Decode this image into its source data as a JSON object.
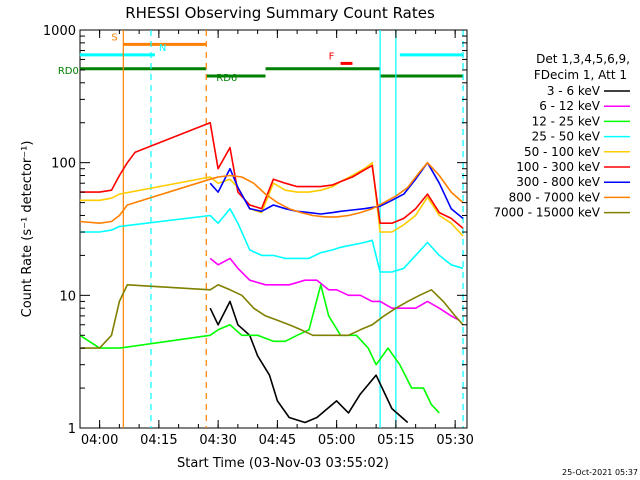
{
  "chart_data": {
    "type": "line",
    "title": "RHESSI Observing Summary Count Rates",
    "xlabel": "Start Time (03-Nov-03 03:55:02)",
    "ylabel": "Count Rate (s⁻¹ detector⁻¹)",
    "y_scale": "log",
    "ylim": [
      1,
      1000
    ],
    "xlim": [
      "03:55:02",
      "05:33:00"
    ],
    "x_ticks": [
      "04:00",
      "04:15",
      "04:30",
      "04:45",
      "05:00",
      "05:15",
      "05:30"
    ],
    "y_ticks": [
      "1",
      "10",
      "100",
      "1000"
    ],
    "footer_timestamp": "25-Oct-2021 05:37",
    "legend": {
      "header": [
        "Det 1,3,4,5,6,9,",
        "FDecim 1, Att 1"
      ],
      "placement": "right"
    },
    "flags": [
      {
        "label": "S",
        "color": "#ff8000",
        "segments": [
          [
            "04:06",
            "04:27"
          ]
        ],
        "level": 780
      },
      {
        "label": "N",
        "color": "#00ffff",
        "segments": [
          [
            "03:55",
            "04:14"
          ],
          [
            "05:16",
            "05:32"
          ]
        ],
        "level": 650
      },
      {
        "label": "F",
        "color": "#ff0000",
        "segments": [
          [
            "05:01",
            "05:04"
          ]
        ],
        "level": 560
      },
      {
        "label": "RD0",
        "color": "#008000",
        "segments": [
          [
            "03:55",
            "04:27"
          ],
          [
            "04:42",
            "05:11"
          ]
        ],
        "level": 510
      },
      {
        "label": "RD6",
        "color": "#008000",
        "segments": [
          [
            "04:27",
            "04:42"
          ],
          [
            "05:11",
            "05:32"
          ]
        ],
        "level": 450
      }
    ],
    "vlines": [
      {
        "time": "04:06",
        "color": "#ff8000",
        "style": "solid"
      },
      {
        "time": "04:27",
        "color": "#ff8000",
        "style": "dashed"
      },
      {
        "time": "04:13",
        "color": "#00ffff",
        "style": "dashed"
      },
      {
        "time": "05:11",
        "color": "#00ffff",
        "style": "solid"
      },
      {
        "time": "05:15",
        "color": "#00ffff",
        "style": "solid"
      },
      {
        "time": "05:32",
        "color": "#00ffff",
        "style": "dashed"
      }
    ],
    "series": [
      {
        "name": "3 - 6 keV",
        "color": "#000000",
        "points": [
          [
            "04:28",
            8
          ],
          [
            "04:30",
            6
          ],
          [
            "04:33",
            9
          ],
          [
            "04:35",
            6
          ],
          [
            "04:38",
            5
          ],
          [
            "04:40",
            3.5
          ],
          [
            "04:43",
            2.5
          ],
          [
            "04:45",
            1.6
          ],
          [
            "04:48",
            1.2
          ],
          [
            "04:52",
            1.1
          ],
          [
            "04:55",
            1.2
          ],
          [
            "05:00",
            1.6
          ],
          [
            "05:03",
            1.3
          ],
          [
            "05:06",
            1.8
          ],
          [
            "05:10",
            2.5
          ],
          [
            "05:14",
            1.4
          ],
          [
            "05:18",
            1.1
          ]
        ]
      },
      {
        "name": "6 - 12 keV",
        "color": "#ff00ff",
        "points": [
          [
            "04:28",
            19
          ],
          [
            "04:30",
            17
          ],
          [
            "04:33",
            19
          ],
          [
            "04:35",
            16
          ],
          [
            "04:38",
            13
          ],
          [
            "04:42",
            12
          ],
          [
            "04:45",
            12
          ],
          [
            "04:48",
            12
          ],
          [
            "04:52",
            13
          ],
          [
            "04:55",
            13
          ],
          [
            "04:58",
            11
          ],
          [
            "05:00",
            11
          ],
          [
            "05:03",
            10
          ],
          [
            "05:06",
            10
          ],
          [
            "05:09",
            9
          ],
          [
            "05:11",
            9
          ],
          [
            "05:14",
            8
          ],
          [
            "05:17",
            8
          ],
          [
            "05:20",
            8
          ],
          [
            "05:23",
            9
          ],
          [
            "05:26",
            8
          ],
          [
            "05:29",
            7
          ],
          [
            "05:31",
            6.5
          ]
        ]
      },
      {
        "name": "12 - 25 keV",
        "color": "#00ff00",
        "points": [
          [
            "03:55",
            5
          ],
          [
            "04:00",
            4
          ],
          [
            "04:03",
            4
          ],
          [
            "04:05",
            4
          ],
          [
            "04:28",
            5
          ],
          [
            "04:30",
            5.5
          ],
          [
            "04:33",
            6
          ],
          [
            "04:36",
            5
          ],
          [
            "04:40",
            5
          ],
          [
            "04:44",
            4.5
          ],
          [
            "04:47",
            4.5
          ],
          [
            "04:50",
            5
          ],
          [
            "04:53",
            5.5
          ],
          [
            "04:56",
            12
          ],
          [
            "04:58",
            7
          ],
          [
            "05:01",
            5
          ],
          [
            "05:05",
            5
          ],
          [
            "05:08",
            4
          ],
          [
            "05:10",
            3
          ],
          [
            "05:13",
            4
          ],
          [
            "05:16",
            3
          ],
          [
            "05:19",
            2
          ],
          [
            "05:22",
            2
          ],
          [
            "05:24",
            1.5
          ],
          [
            "05:26",
            1.3
          ]
        ]
      },
      {
        "name": "25 - 50 keV",
        "color": "#00ffff",
        "points": [
          [
            "03:55",
            30
          ],
          [
            "04:00",
            30
          ],
          [
            "04:03",
            31
          ],
          [
            "04:05",
            33
          ],
          [
            "04:28",
            40
          ],
          [
            "04:30",
            35
          ],
          [
            "04:33",
            45
          ],
          [
            "04:35",
            35
          ],
          [
            "04:38",
            22
          ],
          [
            "04:41",
            20
          ],
          [
            "04:44",
            20
          ],
          [
            "04:47",
            19
          ],
          [
            "04:50",
            19
          ],
          [
            "04:53",
            19
          ],
          [
            "04:56",
            21
          ],
          [
            "04:59",
            22
          ],
          [
            "05:01",
            23
          ],
          [
            "05:04",
            24
          ],
          [
            "05:07",
            25
          ],
          [
            "05:09",
            26
          ],
          [
            "05:11",
            15
          ],
          [
            "05:14",
            15
          ],
          [
            "05:17",
            16
          ],
          [
            "05:20",
            20
          ],
          [
            "05:23",
            25
          ],
          [
            "05:26",
            20
          ],
          [
            "05:29",
            17
          ],
          [
            "05:32",
            16
          ]
        ]
      },
      {
        "name": "50 - 100 keV",
        "color": "#ffcc00",
        "points": [
          [
            "03:55",
            52
          ],
          [
            "04:00",
            52
          ],
          [
            "04:03",
            54
          ],
          [
            "04:05",
            58
          ],
          [
            "04:28",
            78
          ],
          [
            "04:30",
            70
          ],
          [
            "04:33",
            75
          ],
          [
            "04:35",
            65
          ],
          [
            "04:38",
            45
          ],
          [
            "04:41",
            42
          ],
          [
            "04:44",
            70
          ],
          [
            "04:47",
            62
          ],
          [
            "04:50",
            60
          ],
          [
            "04:53",
            60
          ],
          [
            "04:56",
            62
          ],
          [
            "04:59",
            66
          ],
          [
            "05:01",
            72
          ],
          [
            "05:04",
            80
          ],
          [
            "05:07",
            90
          ],
          [
            "05:09",
            100
          ],
          [
            "05:11",
            30
          ],
          [
            "05:14",
            30
          ],
          [
            "05:17",
            34
          ],
          [
            "05:20",
            40
          ],
          [
            "05:23",
            55
          ],
          [
            "05:26",
            40
          ],
          [
            "05:29",
            35
          ],
          [
            "05:32",
            28
          ]
        ]
      },
      {
        "name": "100 - 300 keV",
        "color": "#ff0000",
        "points": [
          [
            "03:55",
            60
          ],
          [
            "04:00",
            60
          ],
          [
            "04:03",
            62
          ],
          [
            "04:05",
            80
          ],
          [
            "04:07",
            100
          ],
          [
            "04:09",
            120
          ],
          [
            "04:28",
            200
          ],
          [
            "04:30",
            90
          ],
          [
            "04:33",
            130
          ],
          [
            "04:35",
            60
          ],
          [
            "04:38",
            48
          ],
          [
            "04:41",
            45
          ],
          [
            "04:44",
            75
          ],
          [
            "04:47",
            70
          ],
          [
            "04:50",
            66
          ],
          [
            "04:53",
            66
          ],
          [
            "04:56",
            66
          ],
          [
            "04:59",
            68
          ],
          [
            "05:01",
            72
          ],
          [
            "05:04",
            78
          ],
          [
            "05:07",
            88
          ],
          [
            "05:09",
            95
          ],
          [
            "05:11",
            35
          ],
          [
            "05:14",
            35
          ],
          [
            "05:17",
            38
          ],
          [
            "05:20",
            45
          ],
          [
            "05:23",
            58
          ],
          [
            "05:26",
            42
          ],
          [
            "05:29",
            38
          ],
          [
            "05:32",
            32
          ]
        ]
      },
      {
        "name": "300 - 800 keV",
        "color": "#0000ff",
        "points": [
          [
            "04:28",
            70
          ],
          [
            "04:30",
            60
          ],
          [
            "04:33",
            90
          ],
          [
            "04:35",
            65
          ],
          [
            "04:38",
            45
          ],
          [
            "04:41",
            43
          ],
          [
            "04:44",
            48
          ],
          [
            "04:47",
            45
          ],
          [
            "04:50",
            43
          ],
          [
            "04:53",
            42
          ],
          [
            "04:56",
            41
          ],
          [
            "04:59",
            42
          ],
          [
            "05:01",
            43
          ],
          [
            "05:04",
            44
          ],
          [
            "05:07",
            45
          ],
          [
            "05:09",
            46
          ],
          [
            "05:11",
            47
          ],
          [
            "05:14",
            52
          ],
          [
            "05:17",
            58
          ],
          [
            "05:20",
            75
          ],
          [
            "05:23",
            100
          ],
          [
            "05:26",
            70
          ],
          [
            "05:29",
            45
          ],
          [
            "05:32",
            38
          ]
        ]
      },
      {
        "name": "800 - 7000 keV",
        "color": "#ff8000",
        "points": [
          [
            "03:55",
            36
          ],
          [
            "04:00",
            35
          ],
          [
            "04:03",
            36
          ],
          [
            "04:05",
            40
          ],
          [
            "04:07",
            48
          ],
          [
            "04:28",
            75
          ],
          [
            "04:30",
            78
          ],
          [
            "04:33",
            80
          ],
          [
            "04:36",
            78
          ],
          [
            "04:39",
            70
          ],
          [
            "04:42",
            58
          ],
          [
            "04:45",
            50
          ],
          [
            "04:48",
            45
          ],
          [
            "04:51",
            42
          ],
          [
            "04:54",
            40
          ],
          [
            "04:57",
            39
          ],
          [
            "05:00",
            39
          ],
          [
            "05:03",
            40
          ],
          [
            "05:06",
            42
          ],
          [
            "05:09",
            45
          ],
          [
            "05:12",
            50
          ],
          [
            "05:15",
            56
          ],
          [
            "05:18",
            65
          ],
          [
            "05:21",
            85
          ],
          [
            "05:23",
            100
          ],
          [
            "05:26",
            80
          ],
          [
            "05:29",
            60
          ],
          [
            "05:32",
            50
          ]
        ]
      },
      {
        "name": "7000 - 15000 keV",
        "color": "#808000",
        "points": [
          [
            "03:55",
            4
          ],
          [
            "04:00",
            4
          ],
          [
            "04:03",
            5
          ],
          [
            "04:05",
            9
          ],
          [
            "04:07",
            12
          ],
          [
            "04:28",
            11
          ],
          [
            "04:30",
            12
          ],
          [
            "04:33",
            11
          ],
          [
            "04:36",
            10
          ],
          [
            "04:39",
            8
          ],
          [
            "04:42",
            7
          ],
          [
            "04:45",
            6.5
          ],
          [
            "04:48",
            6
          ],
          [
            "04:51",
            5.5
          ],
          [
            "04:54",
            5
          ],
          [
            "04:57",
            5
          ],
          [
            "05:00",
            5
          ],
          [
            "05:03",
            5
          ],
          [
            "05:06",
            5.5
          ],
          [
            "05:09",
            6
          ],
          [
            "05:12",
            7
          ],
          [
            "05:15",
            8
          ],
          [
            "05:18",
            9
          ],
          [
            "05:21",
            10
          ],
          [
            "05:24",
            11
          ],
          [
            "05:27",
            9
          ],
          [
            "05:30",
            7
          ],
          [
            "05:32",
            6
          ]
        ]
      }
    ]
  }
}
